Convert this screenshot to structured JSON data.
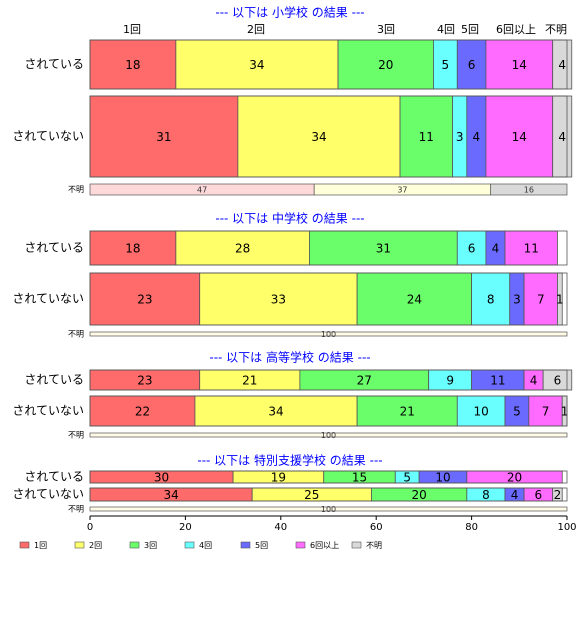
{
  "chart_data": {
    "type": "bar",
    "orientation": "horizontal",
    "stacked": true,
    "categories": [
      "1回",
      "2回",
      "3回",
      "4回",
      "5回",
      "6回以上",
      "不明"
    ],
    "colors": {
      "1回": "#ff6a6a",
      "2回": "#ffff6a",
      "3回": "#6aff6a",
      "4回": "#6affff",
      "5回": "#6a6aff",
      "6回以上": "#ff6aff",
      "不明": "#d9d9d9"
    },
    "unknown_colors": [
      "#fdd9d9",
      "#ffffd9",
      "#d9d9d9"
    ],
    "xlim": [
      0,
      100
    ],
    "xticks": [
      "0",
      "20",
      "40",
      "60",
      "80",
      "100"
    ],
    "category_headers": [
      "1回",
      "2回",
      "3回",
      "4回",
      "5回",
      "6回以上",
      "不明"
    ],
    "legend_position": "bottom",
    "panels": [
      {
        "title": "--- 以下は 小学校 の結果 ---",
        "rows": [
          {
            "label": "されている",
            "values": [
              18,
              34,
              20,
              5,
              6,
              14,
              4
            ]
          },
          {
            "label": "されていない",
            "values": [
              31,
              34,
              11,
              3,
              4,
              14,
              4
            ]
          }
        ],
        "unknown_row": {
          "label": "不明",
          "values": [
            47,
            37,
            16
          ]
        }
      },
      {
        "title": "--- 以下は 中学校 の結果 ---",
        "rows": [
          {
            "label": "されている",
            "values": [
              18,
              28,
              31,
              6,
              4,
              11,
              0
            ]
          },
          {
            "label": "されていない",
            "values": [
              23,
              33,
              24,
              8,
              3,
              7,
              1
            ]
          }
        ],
        "unknown_row": {
          "label": "不明",
          "values": [
            100
          ]
        }
      },
      {
        "title": "--- 以下は 高等学校 の結果 ---",
        "rows": [
          {
            "label": "されている",
            "values": [
              23,
              21,
              27,
              9,
              11,
              4,
              6
            ]
          },
          {
            "label": "されていない",
            "values": [
              22,
              34,
              21,
              10,
              5,
              7,
              1
            ]
          }
        ],
        "unknown_row": {
          "label": "不明",
          "values": [
            100
          ]
        }
      },
      {
        "title": "--- 以下は 特別支援学校 の結果 ---",
        "rows": [
          {
            "label": "されている",
            "values": [
              30,
              19,
              15,
              5,
              10,
              20,
              0
            ]
          },
          {
            "label": "されていない",
            "values": [
              34,
              25,
              20,
              8,
              4,
              6,
              2
            ]
          }
        ],
        "unknown_row": {
          "label": "不明",
          "values": [
            100
          ]
        }
      }
    ]
  }
}
